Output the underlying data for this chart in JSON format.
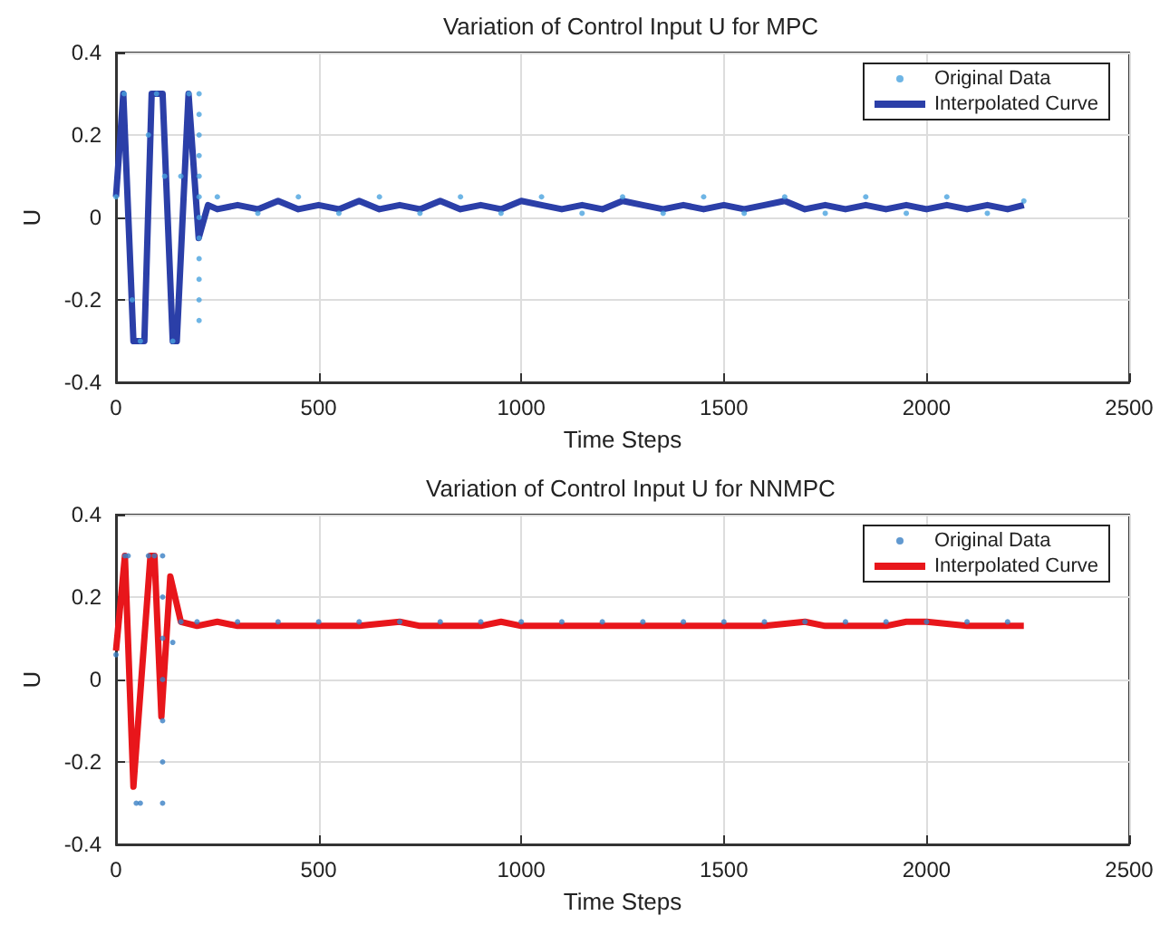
{
  "chart_data": [
    {
      "type": "line",
      "title": "Variation of Control Input U for MPC",
      "xlabel": "Time Steps",
      "ylabel": "U",
      "xlim": [
        0,
        2500
      ],
      "xticks": [
        0,
        500,
        1000,
        1500,
        2000,
        2500
      ],
      "ylim": [
        -0.4,
        0.4
      ],
      "yticks": [
        -0.4,
        -0.2,
        0,
        0.2,
        0.4
      ],
      "grid": true,
      "legend": "top right",
      "series": [
        {
          "name": "Original Data",
          "type": "scatter",
          "color": "#4aa3df",
          "x": [
            0,
            20,
            40,
            60,
            80,
            100,
            120,
            140,
            160,
            180,
            205,
            205,
            205,
            205,
            205,
            205,
            205,
            205,
            205,
            205,
            205,
            205,
            250,
            350,
            450,
            550,
            650,
            750,
            850,
            950,
            1050,
            1150,
            1250,
            1350,
            1450,
            1550,
            1650,
            1750,
            1850,
            1950,
            2050,
            2150,
            2240
          ],
          "values": [
            0.05,
            0.3,
            -0.2,
            -0.3,
            0.2,
            0.3,
            0.1,
            -0.3,
            0.1,
            0.3,
            0.3,
            0.25,
            0.2,
            0.15,
            0.1,
            0.05,
            0,
            -0.05,
            -0.1,
            -0.15,
            -0.2,
            -0.25,
            0.05,
            0.01,
            0.05,
            0.01,
            0.05,
            0.01,
            0.05,
            0.01,
            0.05,
            0.01,
            0.05,
            0.01,
            0.05,
            0.01,
            0.05,
            0.01,
            0.05,
            0.01,
            0.05,
            0.01,
            0.04
          ]
        },
        {
          "name": "Interpolated Curve",
          "type": "line",
          "color": "#2b3fa8",
          "x": [
            0,
            18,
            43,
            70,
            88,
            115,
            140,
            150,
            179,
            204,
            227,
            250,
            300,
            350,
            400,
            450,
            500,
            550,
            600,
            650,
            700,
            750,
            800,
            850,
            900,
            950,
            1000,
            1050,
            1100,
            1150,
            1200,
            1250,
            1300,
            1350,
            1400,
            1450,
            1500,
            1550,
            1600,
            1650,
            1700,
            1750,
            1800,
            1850,
            1900,
            1950,
            2000,
            2050,
            2100,
            2150,
            2200,
            2240
          ],
          "values": [
            0.05,
            0.3,
            -0.3,
            -0.3,
            0.3,
            0.3,
            -0.3,
            -0.3,
            0.3,
            -0.05,
            0.03,
            0.02,
            0.03,
            0.02,
            0.04,
            0.02,
            0.03,
            0.02,
            0.04,
            0.02,
            0.03,
            0.02,
            0.04,
            0.02,
            0.03,
            0.02,
            0.04,
            0.03,
            0.02,
            0.03,
            0.02,
            0.04,
            0.03,
            0.02,
            0.03,
            0.02,
            0.03,
            0.02,
            0.03,
            0.04,
            0.02,
            0.03,
            0.02,
            0.03,
            0.02,
            0.03,
            0.02,
            0.03,
            0.02,
            0.03,
            0.02,
            0.03
          ]
        }
      ]
    },
    {
      "type": "line",
      "title": "Variation of Control Input U for NNMPC",
      "xlabel": "Time Steps",
      "ylabel": "U",
      "xlim": [
        0,
        2500
      ],
      "xticks": [
        0,
        500,
        1000,
        1500,
        2000,
        2500
      ],
      "ylim": [
        -0.4,
        0.4
      ],
      "yticks": [
        -0.4,
        -0.2,
        0,
        0.2,
        0.4
      ],
      "grid": true,
      "legend": "top right",
      "series": [
        {
          "name": "Original Data",
          "type": "scatter",
          "color": "#3a7fc4",
          "x": [
            0,
            22,
            30,
            50,
            60,
            80,
            95,
            115,
            115,
            115,
            115,
            115,
            115,
            115,
            140,
            160,
            200,
            300,
            400,
            500,
            600,
            700,
            800,
            900,
            1000,
            1100,
            1200,
            1300,
            1400,
            1500,
            1600,
            1700,
            1800,
            1900,
            2000,
            2100,
            2200
          ],
          "values": [
            0.06,
            0.3,
            0.3,
            -0.3,
            -0.3,
            0.3,
            0.3,
            0.3,
            0.2,
            0.1,
            0,
            -0.1,
            -0.2,
            -0.3,
            0.09,
            0.14,
            0.14,
            0.14,
            0.14,
            0.14,
            0.14,
            0.14,
            0.14,
            0.14,
            0.14,
            0.14,
            0.14,
            0.14,
            0.14,
            0.14,
            0.14,
            0.14,
            0.14,
            0.14,
            0.14,
            0.14,
            0.14
          ]
        },
        {
          "name": "Interpolated Curve",
          "type": "line",
          "color": "#e8161b",
          "x": [
            0,
            22,
            43,
            85,
            95,
            112,
            134,
            160,
            200,
            250,
            300,
            400,
            500,
            600,
            700,
            750,
            800,
            900,
            950,
            1000,
            1100,
            1200,
            1300,
            1400,
            1500,
            1600,
            1700,
            1750,
            1800,
            1900,
            1950,
            2000,
            2100,
            2200,
            2240
          ],
          "values": [
            0.07,
            0.3,
            -0.26,
            0.3,
            0.3,
            -0.09,
            0.25,
            0.14,
            0.13,
            0.14,
            0.13,
            0.13,
            0.13,
            0.13,
            0.14,
            0.13,
            0.13,
            0.13,
            0.14,
            0.13,
            0.13,
            0.13,
            0.13,
            0.13,
            0.13,
            0.13,
            0.14,
            0.13,
            0.13,
            0.13,
            0.14,
            0.14,
            0.13,
            0.13,
            0.13
          ]
        }
      ]
    }
  ]
}
